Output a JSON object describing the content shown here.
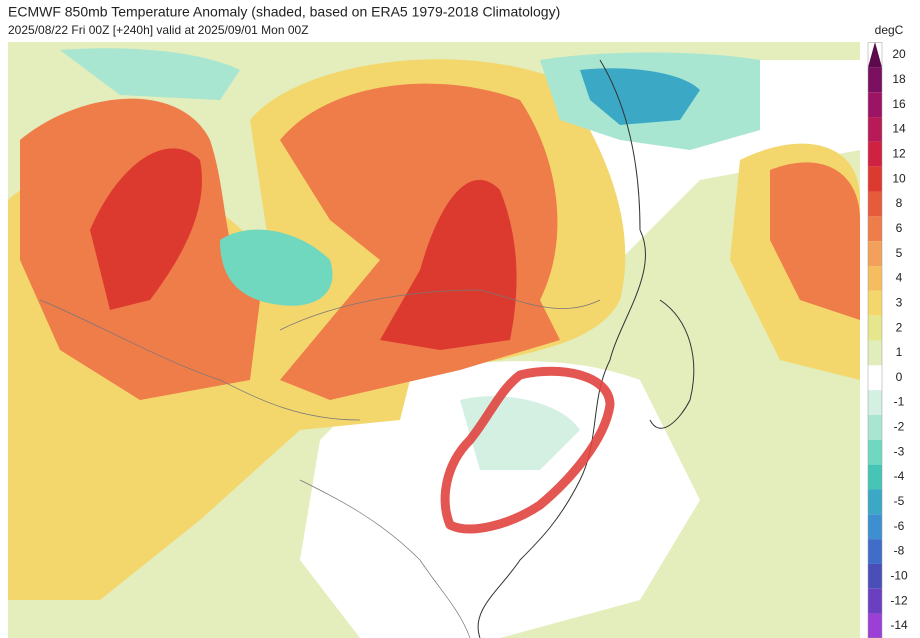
{
  "header": {
    "title": "ECMWF 850mb Temperature Anomaly (shaded, based on ERA5 1979-2018 Climatology)",
    "subtitle": "2025/08/22 Fri 00Z [+240h] valid at 2025/09/01 Mon 00Z"
  },
  "colorbar": {
    "unit": "degC",
    "levels": [
      20,
      18,
      16,
      14,
      12,
      10,
      8,
      6,
      5,
      4,
      3,
      2,
      1,
      0,
      -1,
      -2,
      -3,
      -4,
      -5,
      -6,
      -8,
      -10,
      -12,
      -14
    ],
    "colors": [
      "#5c0a4c",
      "#7c1060",
      "#9c1564",
      "#b81a58",
      "#cf2140",
      "#dd3a2f",
      "#e65b3c",
      "#ee7d4a",
      "#f3a05a",
      "#f6bd60",
      "#f3d76c",
      "#e6e68c",
      "#e1edba",
      "#ffffff",
      "#d3f0e3",
      "#a8e6d2",
      "#70d8bf",
      "#46c5b7",
      "#3ba8c6",
      "#3d8fd0",
      "#3f6dc8",
      "#4a4fb8",
      "#6a3fc0",
      "#9b3fd6"
    ]
  }
}
